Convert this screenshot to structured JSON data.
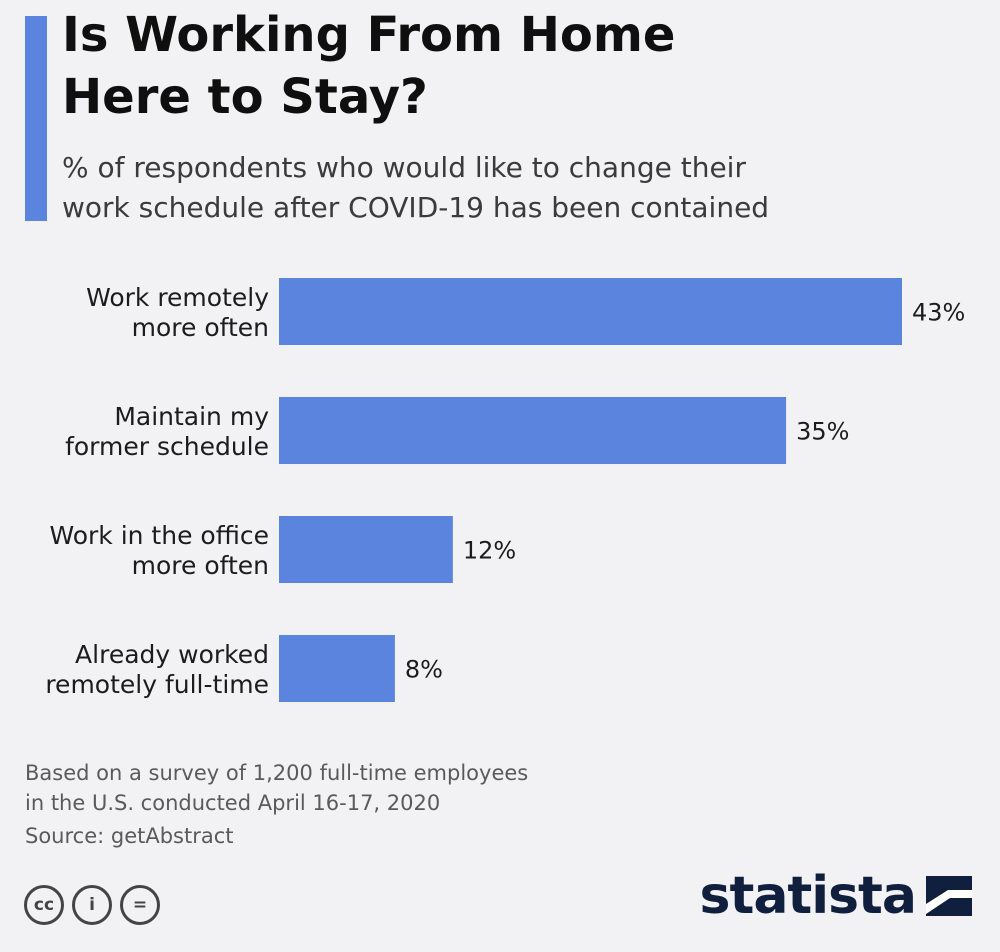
{
  "header": {
    "title_line1": "Is Working From Home",
    "title_line2": "Here to Stay?",
    "subtitle_line1": "% of respondents who would like to change their",
    "subtitle_line2": "work schedule after COVID-19 has been contained"
  },
  "chart_data": {
    "type": "bar",
    "orientation": "horizontal",
    "title": "Is Working From Home Here to Stay?",
    "subtitle": "% of respondents who would like to change their work schedule after COVID-19 has been contained",
    "categories": [
      [
        "Work remotely",
        "more often"
      ],
      [
        "Maintain my",
        "former schedule"
      ],
      [
        "Work in the office",
        "more often"
      ],
      [
        "Already worked",
        "remotely full-time"
      ]
    ],
    "values": [
      43,
      35,
      12,
      8
    ],
    "value_labels": [
      "43%",
      "35%",
      "12%",
      "8%"
    ],
    "unit": "%",
    "xlim": [
      0,
      43
    ],
    "bar_color": "#5b84de",
    "grid": false,
    "legend": "none"
  },
  "footer": {
    "note_line1": "Based on a survey of 1,200 full-time employees",
    "note_line2": "in the U.S. conducted April 16-17, 2020",
    "source": "Source: getAbstract",
    "license_icons": [
      "cc-icon",
      "attribution-icon",
      "no-derivatives-icon"
    ],
    "license_glyphs": [
      "cc",
      "i",
      "="
    ],
    "brand": "statista"
  }
}
